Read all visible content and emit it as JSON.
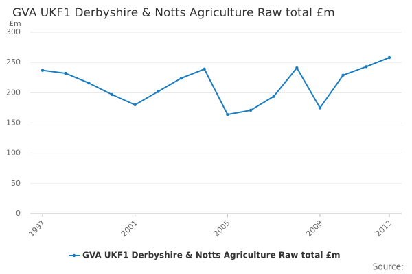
{
  "chart_data": {
    "type": "line",
    "title": "GVA UKF1 Derbyshire & Notts Agriculture Raw total £m",
    "y_label": "£m",
    "source": "Source:",
    "x": [
      1997,
      1998,
      1999,
      2000,
      2001,
      2002,
      2003,
      2004,
      2005,
      2006,
      2007,
      2008,
      2009,
      2010,
      2011,
      2012
    ],
    "series": [
      {
        "name": "GVA UKF1 Derbyshire & Notts Agriculture Raw total £m",
        "color": "#1a7cbf",
        "values": [
          237,
          232,
          216,
          197,
          180,
          202,
          224,
          239,
          164,
          171,
          194,
          241,
          175,
          229,
          243,
          258
        ]
      }
    ],
    "xlim": [
      1997,
      2012
    ],
    "xticks": [
      1997,
      2001,
      2005,
      2009,
      2012
    ],
    "ylim": [
      0,
      300
    ],
    "yticks": [
      0,
      50,
      100,
      150,
      200,
      250,
      300
    ],
    "grid": true,
    "legend": "bottom"
  }
}
